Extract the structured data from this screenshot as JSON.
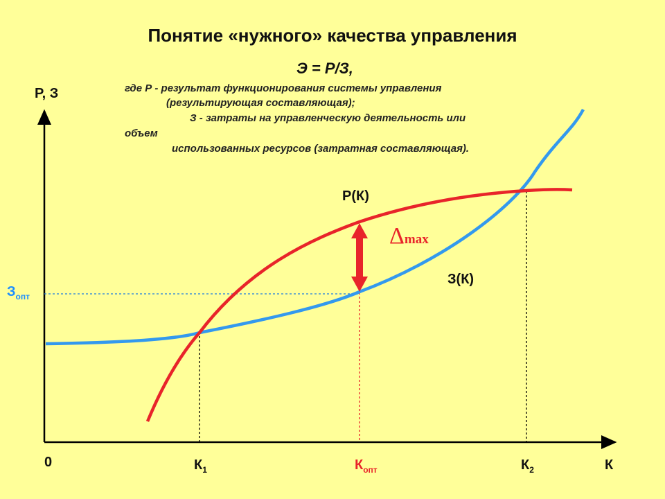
{
  "title": "Понятие «нужного» качества управления",
  "formula": "Э = Р/З,",
  "notes": {
    "line1": "где Р - результат функционирования системы управления",
    "line2": "(результирующая составляющая);",
    "line3": "З - затраты на управленческую деятельность или",
    "line4": "объем",
    "line5": "использованных ресурсов (затратная составляющая)."
  },
  "axes": {
    "y_label": "Р, З",
    "x_label": "К",
    "origin": "0"
  },
  "curves": {
    "result_label": "Р(К)",
    "cost_label": "З(К)"
  },
  "delta": {
    "symbol": "Δ",
    "sub": "max"
  },
  "ticks": {
    "k1": "К",
    "k1_sub": "1",
    "kopt": "К",
    "kopt_sub": "опт",
    "k2": "К",
    "k2_sub": "2",
    "zopt": "З",
    "zopt_sub": "опт"
  },
  "colors": {
    "background": "#FFFF99",
    "result_curve": "#E8242A",
    "cost_curve": "#3399EE",
    "axis": "#000000"
  }
}
